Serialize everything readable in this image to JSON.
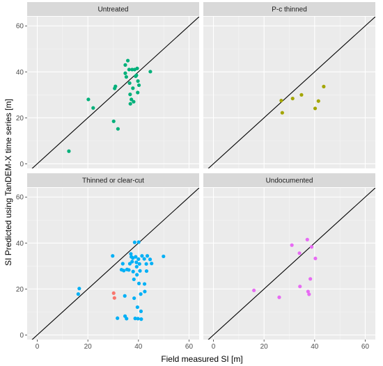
{
  "chart_data": {
    "type": "scatter",
    "xlabel": "Field measured SI [m]",
    "ylabel": "SI Predicted using TanDEM-X time series [m]",
    "xlim": [
      -4,
      64
    ],
    "ylim": [
      -2,
      64
    ],
    "xticks": [
      0,
      20,
      40,
      60
    ],
    "yticks": [
      0,
      20,
      40,
      60
    ],
    "reference_line": "y = x",
    "grid": true,
    "facets": [
      {
        "title": "Untreated",
        "color": "#00b07a",
        "points": [
          [
            12.5,
            5.5
          ],
          [
            20.2,
            28
          ],
          [
            22.1,
            24.3
          ],
          [
            30.2,
            18.5
          ],
          [
            30.6,
            32.8
          ],
          [
            30.9,
            33.7
          ],
          [
            31.9,
            15.2
          ],
          [
            34.8,
            43
          ],
          [
            34.8,
            39.4
          ],
          [
            35.2,
            37.8
          ],
          [
            35.8,
            44.9
          ],
          [
            36.3,
            41
          ],
          [
            36.5,
            35.1
          ],
          [
            36.7,
            30.2
          ],
          [
            36.8,
            26.1
          ],
          [
            37.2,
            28
          ],
          [
            37.5,
            41
          ],
          [
            37.8,
            32.9
          ],
          [
            38.1,
            27
          ],
          [
            38.5,
            41
          ],
          [
            38.9,
            38.1
          ],
          [
            39.2,
            38.5
          ],
          [
            39.5,
            41.5
          ],
          [
            39.7,
            31
          ],
          [
            39.8,
            36
          ],
          [
            40.2,
            34.2
          ],
          [
            44.7,
            40.1
          ]
        ]
      },
      {
        "title": "P-c thinned",
        "color": "#a3a500",
        "points": [
          [
            26.8,
            27.5
          ],
          [
            27.2,
            22.2
          ],
          [
            31.3,
            28.4
          ],
          [
            34.8,
            30
          ],
          [
            40.2,
            24.1
          ],
          [
            41.5,
            27.3
          ],
          [
            43.6,
            33.6
          ]
        ]
      },
      {
        "title": "Thinned or clear-cut",
        "color": "#00b0f6",
        "points": [
          [
            16.2,
            17.8
          ],
          [
            16.6,
            20.2
          ],
          [
            29.8,
            34.4
          ],
          [
            31.7,
            7.3
          ],
          [
            33.3,
            28.4
          ],
          [
            33.8,
            31
          ],
          [
            34.2,
            28
          ],
          [
            34.6,
            17
          ],
          [
            34.7,
            8.2
          ],
          [
            35.3,
            7.1
          ],
          [
            35.5,
            28.5
          ],
          [
            36.2,
            28.3
          ],
          [
            36.6,
            31
          ],
          [
            37,
            35.3
          ],
          [
            37.2,
            34
          ],
          [
            37.5,
            31.9
          ],
          [
            37.8,
            33.5
          ],
          [
            37.9,
            27.6
          ],
          [
            38.2,
            24.2
          ],
          [
            38.3,
            16
          ],
          [
            38.5,
            40.3
          ],
          [
            38.7,
            7.2
          ],
          [
            38.9,
            34
          ],
          [
            39.2,
            31.6
          ],
          [
            39.3,
            29.7
          ],
          [
            39.4,
            26.2
          ],
          [
            39.6,
            12.1
          ],
          [
            39.8,
            7.1
          ],
          [
            40,
            33
          ],
          [
            40.1,
            40.4
          ],
          [
            40.2,
            22.4
          ],
          [
            40.4,
            30.9
          ],
          [
            40.6,
            27.9
          ],
          [
            40.9,
            17.8
          ],
          [
            41,
            10.3
          ],
          [
            41.1,
            6.9
          ],
          [
            41.4,
            34.4
          ],
          [
            42.3,
            33.1
          ],
          [
            42.4,
            22.2
          ],
          [
            42.5,
            18.9
          ],
          [
            43.1,
            30.9
          ],
          [
            43.2,
            27.8
          ],
          [
            43.5,
            34.4
          ],
          [
            44.6,
            32.9
          ],
          [
            45.2,
            31.1
          ],
          [
            49.9,
            34.2
          ]
        ]
      },
      {
        "title": "Undocumented",
        "color": "#e76bf3",
        "points": [
          [
            16,
            19.4
          ],
          [
            26,
            16.4
          ],
          [
            31,
            39.1
          ],
          [
            34,
            35.6
          ],
          [
            34.2,
            21.1
          ],
          [
            37.1,
            41.5
          ],
          [
            37.4,
            18.9
          ],
          [
            37.8,
            17.7
          ],
          [
            38.3,
            24.4
          ],
          [
            38.8,
            38.3
          ],
          [
            40.3,
            33.3
          ]
        ]
      }
    ],
    "extra_series": [
      {
        "facet": 2,
        "color": "#f8766d",
        "points": [
          [
            30.2,
            18.2
          ],
          [
            30.5,
            16.1
          ]
        ]
      }
    ]
  }
}
